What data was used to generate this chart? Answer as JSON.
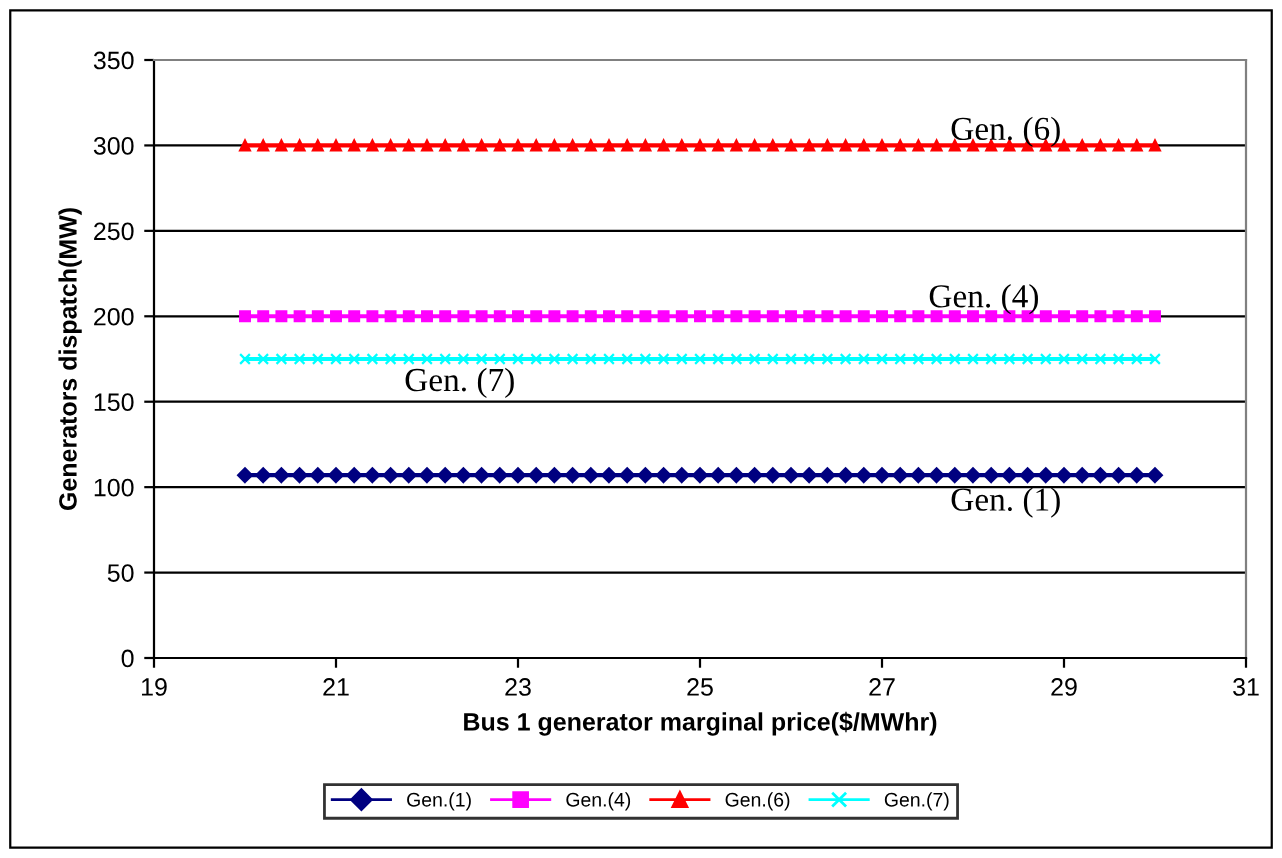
{
  "chart_data": {
    "type": "line",
    "xlabel": "Bus 1 generator marginal price($/MWhr)",
    "ylabel": "Generators dispatch(MW)",
    "x": [
      20,
      20.2,
      20.4,
      20.6,
      20.8,
      21,
      21.2,
      21.4,
      21.6,
      21.8,
      22,
      22.2,
      22.4,
      22.6,
      22.8,
      23,
      23.2,
      23.4,
      23.6,
      23.8,
      24,
      24.2,
      24.4,
      24.6,
      24.8,
      25,
      25.2,
      25.4,
      25.6,
      25.8,
      26,
      26.2,
      26.4,
      26.6,
      26.8,
      27,
      27.2,
      27.4,
      27.6,
      27.8,
      28,
      28.2,
      28.4,
      28.6,
      28.8,
      29,
      29.2,
      29.4,
      29.6,
      29.8,
      30
    ],
    "series": [
      {
        "name": "Gen.(1)",
        "color": "#000080",
        "marker": "diamond",
        "values": [
          107,
          107,
          107,
          107,
          107,
          107,
          107,
          107,
          107,
          107,
          107,
          107,
          107,
          107,
          107,
          107,
          107,
          107,
          107,
          107,
          107,
          107,
          107,
          107,
          107,
          107,
          107,
          107,
          107,
          107,
          107,
          107,
          107,
          107,
          107,
          107,
          107,
          107,
          107,
          107,
          107,
          107,
          107,
          107,
          107,
          107,
          107,
          107,
          107,
          107,
          107
        ]
      },
      {
        "name": "Gen.(4)",
        "color": "#ff00ff",
        "marker": "square",
        "values": [
          200,
          200,
          200,
          200,
          200,
          200,
          200,
          200,
          200,
          200,
          200,
          200,
          200,
          200,
          200,
          200,
          200,
          200,
          200,
          200,
          200,
          200,
          200,
          200,
          200,
          200,
          200,
          200,
          200,
          200,
          200,
          200,
          200,
          200,
          200,
          200,
          200,
          200,
          200,
          200,
          200,
          200,
          200,
          200,
          200,
          200,
          200,
          200,
          200,
          200,
          200
        ]
      },
      {
        "name": "Gen.(6)",
        "color": "#ff0000",
        "marker": "triangle",
        "values": [
          300,
          300,
          300,
          300,
          300,
          300,
          300,
          300,
          300,
          300,
          300,
          300,
          300,
          300,
          300,
          300,
          300,
          300,
          300,
          300,
          300,
          300,
          300,
          300,
          300,
          300,
          300,
          300,
          300,
          300,
          300,
          300,
          300,
          300,
          300,
          300,
          300,
          300,
          300,
          300,
          300,
          300,
          300,
          300,
          300,
          300,
          300,
          300,
          300,
          300,
          300
        ]
      },
      {
        "name": "Gen.(7)",
        "color": "#00ffff",
        "marker": "cross",
        "values": [
          175,
          175,
          175,
          175,
          175,
          175,
          175,
          175,
          175,
          175,
          175,
          175,
          175,
          175,
          175,
          175,
          175,
          175,
          175,
          175,
          175,
          175,
          175,
          175,
          175,
          175,
          175,
          175,
          175,
          175,
          175,
          175,
          175,
          175,
          175,
          175,
          175,
          175,
          175,
          175,
          175,
          175,
          175,
          175,
          175,
          175,
          175,
          175,
          175,
          175,
          175
        ]
      }
    ],
    "annotations": [
      "Gen. (6)",
      "Gen. (4)",
      "Gen. (7)",
      "Gen. (1)"
    ],
    "xlim": [
      19,
      31
    ],
    "xticks": [
      19,
      21,
      23,
      25,
      27,
      29,
      31
    ],
    "ylim": [
      0,
      350
    ],
    "yticks": [
      0,
      50,
      100,
      150,
      200,
      250,
      300,
      350
    ],
    "grid": "y",
    "legend": "bottom"
  }
}
